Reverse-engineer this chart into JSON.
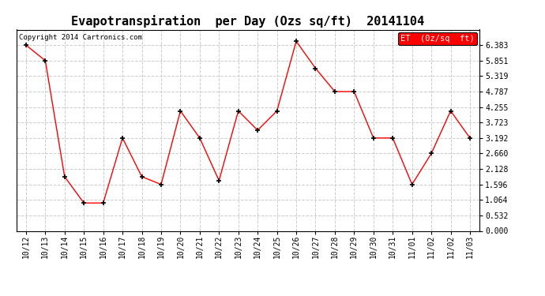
{
  "title": "Evapotranspiration  per Day (Ozs sq/ft)  20141104",
  "copyright": "Copyright 2014 Cartronics.com",
  "legend_label": "ET  (0z/sq  ft)",
  "x_labels": [
    "10/12",
    "10/13",
    "10/14",
    "10/15",
    "10/16",
    "10/17",
    "10/18",
    "10/19",
    "10/20",
    "10/21",
    "10/22",
    "10/23",
    "10/24",
    "10/25",
    "10/26",
    "10/27",
    "10/28",
    "10/29",
    "10/30",
    "10/31",
    "11/01",
    "11/02",
    "11/02",
    "11/03"
  ],
  "y_values": [
    6.383,
    5.851,
    1.862,
    0.958,
    0.958,
    3.192,
    1.862,
    1.596,
    4.122,
    3.192,
    1.728,
    4.122,
    3.458,
    4.122,
    6.516,
    5.585,
    4.787,
    4.787,
    3.192,
    3.192,
    1.596,
    2.66,
    4.122,
    3.192
  ],
  "y_min": 0.0,
  "y_max": 6.916,
  "y_ticks": [
    0.0,
    0.532,
    1.064,
    1.596,
    2.128,
    2.66,
    3.192,
    3.723,
    4.255,
    4.787,
    5.319,
    5.851,
    6.383
  ],
  "line_color": "red",
  "marker_color": "black",
  "marker": "+",
  "grid_color": "#cccccc",
  "bg_color": "white",
  "title_fontsize": 11,
  "tick_fontsize": 7,
  "copyright_fontsize": 6.5,
  "legend_bg": "red",
  "legend_fg": "white",
  "legend_fontsize": 7.5,
  "fig_width": 6.9,
  "fig_height": 3.75,
  "dpi": 100
}
